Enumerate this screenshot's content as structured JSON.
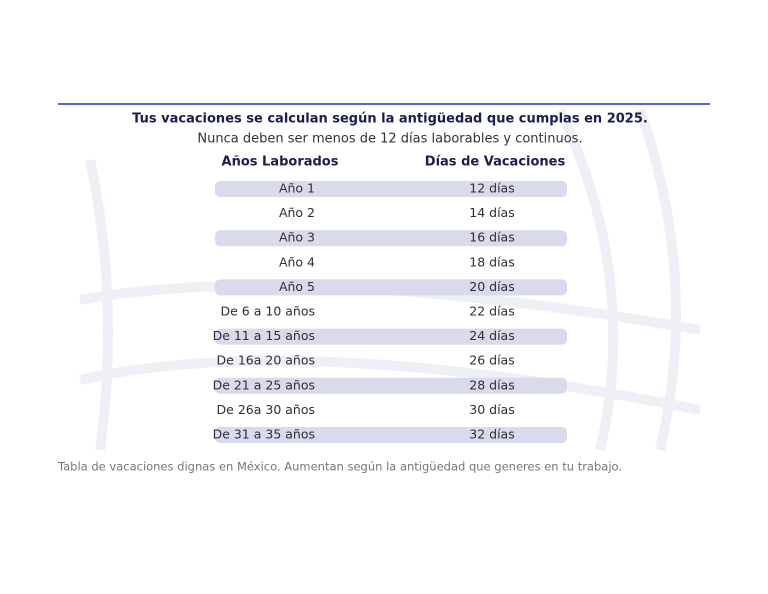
{
  "title": "Tus vacaciones se calculan según la antigüedad que cumplas en 2025.",
  "subtitle": "Nunca deben ser menos de 12 días laborables y continuos.",
  "table": {
    "headers": [
      "Años Laborados",
      "Días de Vacaciones"
    ],
    "rows": [
      [
        "Año 1",
        "12 días"
      ],
      [
        "Año 2",
        "14 días"
      ],
      [
        "Año 3",
        "16 días"
      ],
      [
        "Año 4",
        "18 días"
      ],
      [
        "Año 5",
        "20 días"
      ],
      [
        "De 6 a 10 años",
        "22 días"
      ],
      [
        "De 11 a 15 años",
        "24 días"
      ],
      [
        "De 16a 20 años",
        "26 días"
      ],
      [
        "De 21 a 25 años",
        "28 días"
      ],
      [
        "De 26a 30 años",
        "30 días"
      ],
      [
        "De 31 a 35 años",
        "32 días"
      ]
    ]
  },
  "caption": "Tabla de vacaciones dignas en México. Aumentan según la antigüedad que generes en tu trabajo."
}
